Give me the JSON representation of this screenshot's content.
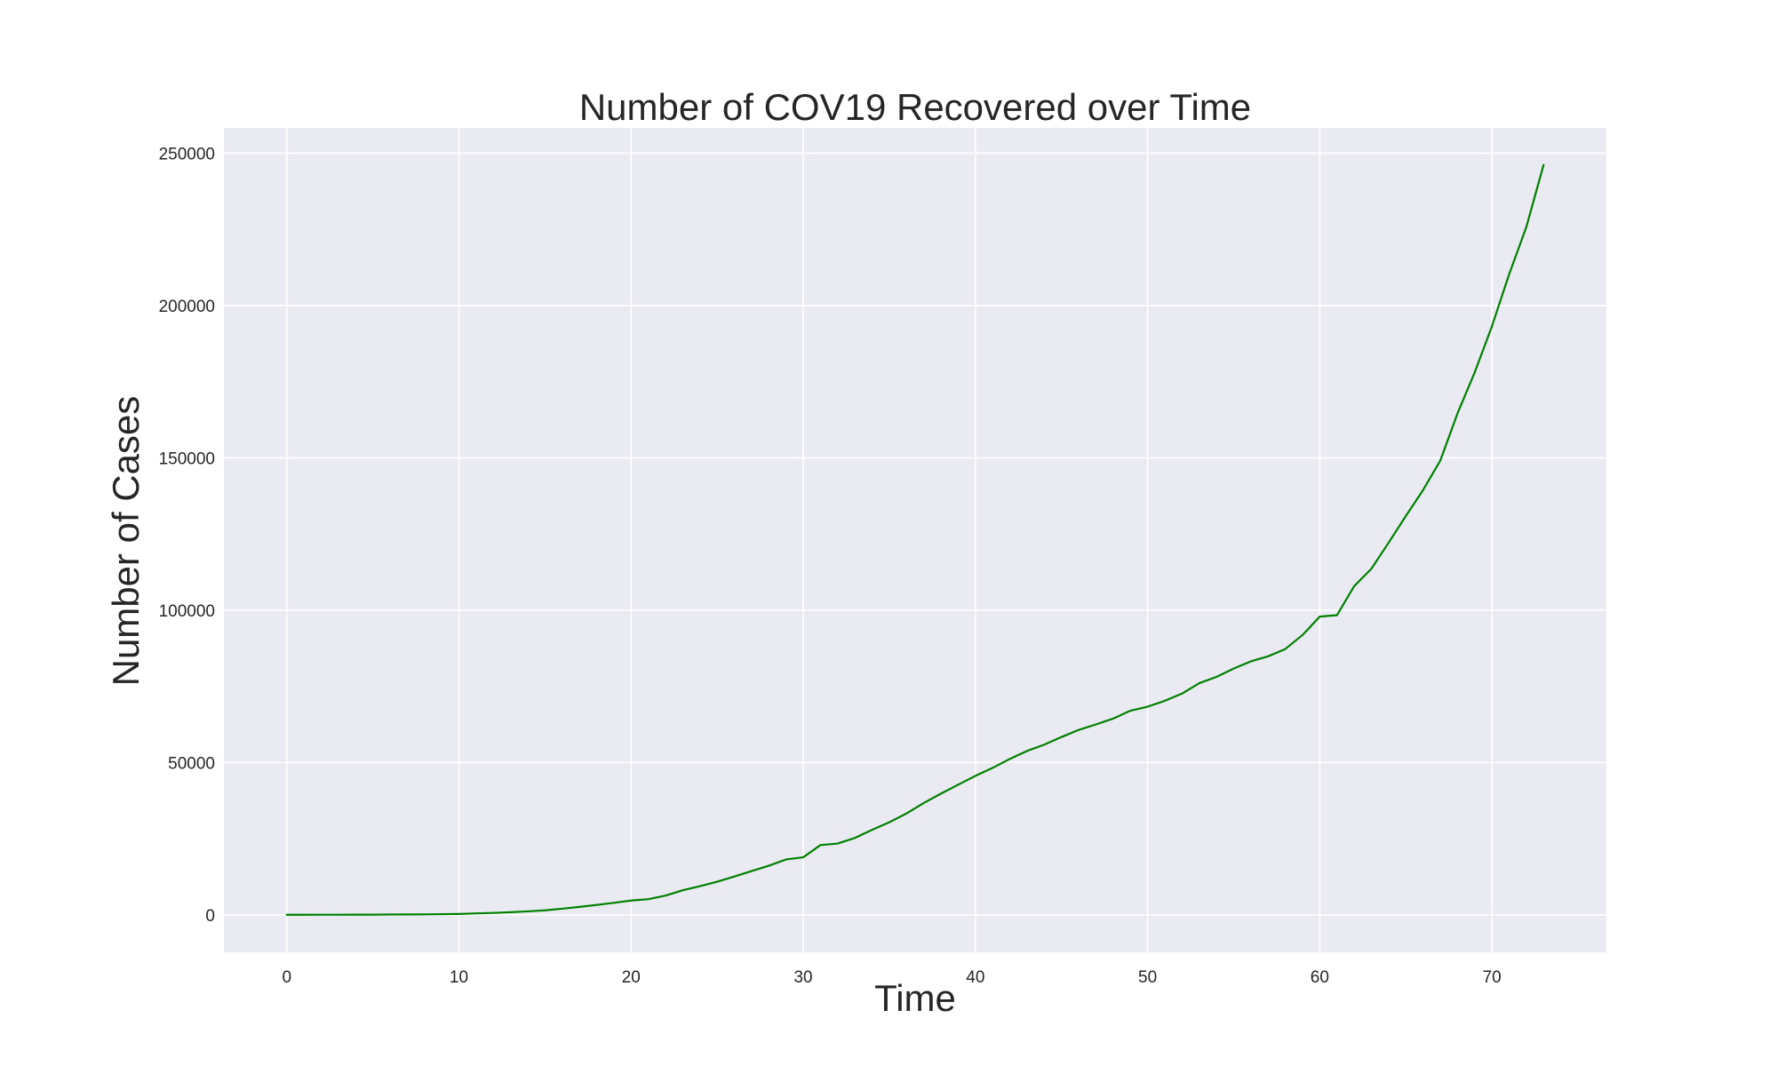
{
  "chart_data": {
    "type": "line",
    "title": "Number of COV19 Recovered over Time",
    "xlabel": "Time",
    "ylabel": "Number of Cases",
    "xlim": [
      -3.65,
      76.65
    ],
    "ylim": [
      -12300,
      258300
    ],
    "xticks": [
      0,
      10,
      20,
      30,
      40,
      50,
      60,
      70
    ],
    "yticks": [
      0,
      50000,
      100000,
      150000,
      200000,
      250000
    ],
    "xtick_labels": [
      "0",
      "10",
      "20",
      "30",
      "40",
      "50",
      "60",
      "70"
    ],
    "ytick_labels": [
      "0",
      "50000",
      "100000",
      "150000",
      "200000",
      "250000"
    ],
    "grid": true,
    "background": "#eaeaf2",
    "grid_color": "#ffffff",
    "series": [
      {
        "color": "#008000",
        "x": [
          0,
          1,
          2,
          3,
          4,
          5,
          6,
          7,
          8,
          9,
          10,
          11,
          12,
          13,
          14,
          15,
          16,
          17,
          18,
          19,
          20,
          21,
          22,
          23,
          24,
          25,
          26,
          27,
          28,
          29,
          30,
          31,
          32,
          33,
          34,
          35,
          36,
          37,
          38,
          39,
          40,
          41,
          42,
          43,
          44,
          45,
          46,
          47,
          48,
          49,
          50,
          51,
          52,
          53,
          54,
          55,
          56,
          57,
          58,
          59,
          60,
          61,
          62,
          63,
          64,
          65,
          66,
          67,
          68,
          69,
          70,
          71,
          72,
          73
        ],
        "values": [
          28,
          30,
          36,
          39,
          52,
          61,
          107,
          126,
          143,
          222,
          284,
          472,
          623,
          852,
          1124,
          1487,
          2011,
          2616,
          3244,
          3946,
          4683,
          5150,
          6295,
          8058,
          9395,
          10865,
          12583,
          14352,
          16121,
          18177,
          18890,
          22886,
          23394,
          25227,
          27905,
          30384,
          33277,
          36711,
          39782,
          42716,
          45602,
          48229,
          51171,
          53797,
          55866,
          58359,
          60694,
          62494,
          64404,
          67003,
          68324,
          70251,
          72624,
          76034,
          78088,
          80840,
          83207,
          84854,
          87256,
          91853,
          97882,
          98351,
          107890,
          113604,
          122150,
          130915,
          139415,
          149082,
          164566,
          178034,
          193177,
          210263,
          225796,
          246152
        ]
      }
    ]
  }
}
